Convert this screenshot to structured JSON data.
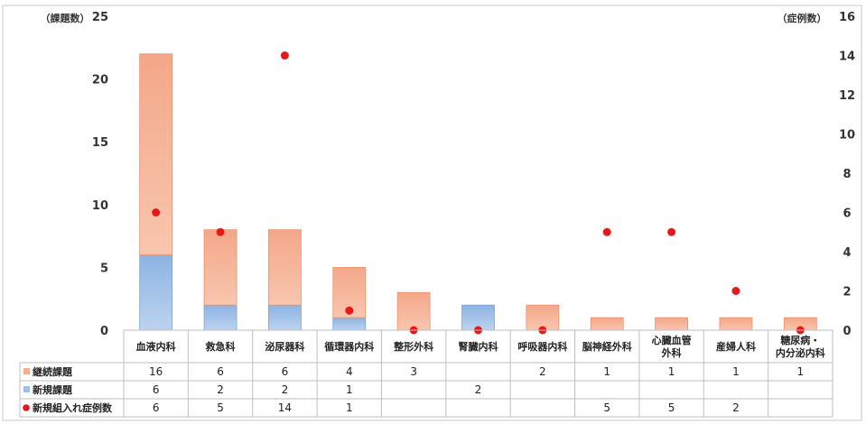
{
  "chart_data": {
    "type": "bar",
    "categories": [
      [
        "血液内科"
      ],
      [
        "救急科"
      ],
      [
        "泌尿器科"
      ],
      [
        "循環器内科"
      ],
      [
        "整形外科"
      ],
      [
        "腎臓内科"
      ],
      [
        "呼吸器内科"
      ],
      [
        "脳神経外科"
      ],
      [
        "心臓血管",
        "外科"
      ],
      [
        "産婦人科"
      ],
      [
        "糖尿病・",
        "内分泌内科"
      ]
    ],
    "y_left": {
      "unit_label": "（課題数）",
      "min": 0,
      "max": 25,
      "ticks": [
        0,
        5,
        10,
        15,
        20,
        25
      ]
    },
    "y_right": {
      "unit_label": "（症例数）",
      "min": 0,
      "max": 16,
      "ticks": [
        0,
        2,
        4,
        6,
        8,
        10,
        12,
        14,
        16
      ]
    },
    "stacked": true,
    "series": [
      {
        "name": "継続課題",
        "kind": "bar",
        "axis": "left",
        "color": "#f5b08f",
        "values": [
          16,
          6,
          6,
          4,
          3,
          null,
          2,
          1,
          1,
          1,
          1
        ]
      },
      {
        "name": "新規課題",
        "kind": "bar",
        "axis": "left",
        "color": "#9fc0e6",
        "values": [
          6,
          2,
          2,
          1,
          null,
          2,
          null,
          null,
          null,
          null,
          null
        ]
      },
      {
        "name": "新規組入れ症例数",
        "kind": "scatter",
        "axis": "right",
        "color": "#e81818",
        "values": [
          6,
          5,
          14,
          1,
          0,
          0,
          0,
          5,
          5,
          2,
          0
        ],
        "table_values": [
          6,
          5,
          14,
          1,
          null,
          null,
          null,
          5,
          5,
          2,
          null
        ]
      }
    ],
    "grid": false,
    "legend": "table"
  }
}
